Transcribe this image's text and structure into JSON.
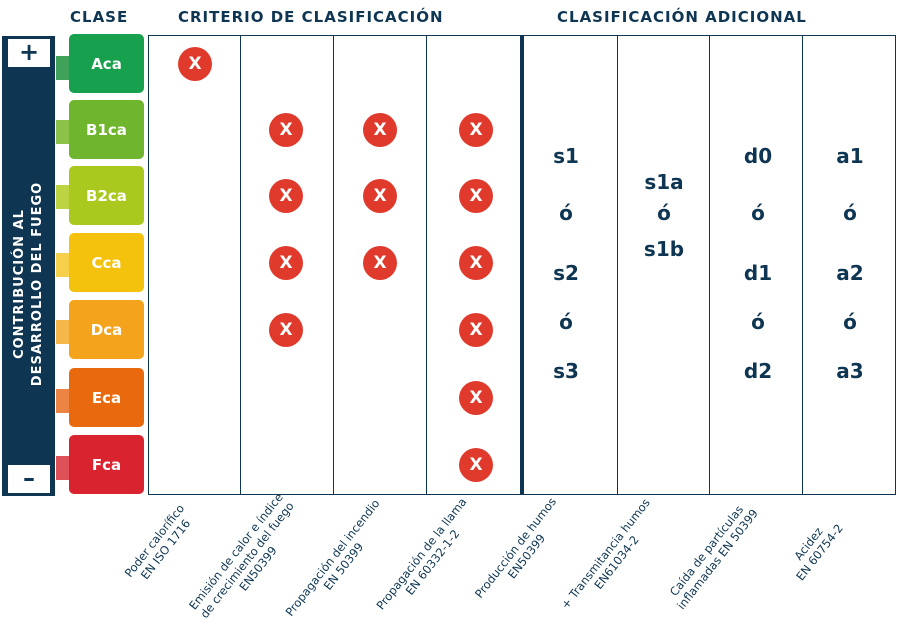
{
  "headers": {
    "clase": "CLASE",
    "criterio": "CRITERIO DE CLASIFICACIÓN",
    "adicional": "CLASIFICACIÓN ADICIONAL"
  },
  "sidebar": {
    "plus": "+",
    "minus": "–",
    "line1": "CONTRIBUCIÓN AL",
    "line2": "DESARROLLO DEL FUEGO"
  },
  "mark_symbol": "X",
  "classes": [
    {
      "label": "Aca",
      "color": "#17a04e",
      "tab_color": "#3fa15a",
      "marks": [
        true,
        false,
        false,
        false
      ]
    },
    {
      "label": "B1ca",
      "color": "#6fb52e",
      "tab_color": "#8cc24a",
      "marks": [
        false,
        true,
        true,
        true
      ]
    },
    {
      "label": "B2ca",
      "color": "#a9c91f",
      "tab_color": "#bcd342",
      "marks": [
        false,
        true,
        true,
        true
      ]
    },
    {
      "label": "Cca",
      "color": "#f4c20d",
      "tab_color": "#f6d04a",
      "marks": [
        false,
        true,
        true,
        true
      ]
    },
    {
      "label": "Dca",
      "color": "#f3a41c",
      "tab_color": "#f5b64a",
      "marks": [
        false,
        true,
        false,
        true
      ]
    },
    {
      "label": "Eca",
      "color": "#e9690f",
      "tab_color": "#ec8444",
      "marks": [
        false,
        false,
        false,
        true
      ]
    },
    {
      "label": "Fca",
      "color": "#d9232f",
      "tab_color": "#df5158",
      "marks": [
        false,
        false,
        false,
        true
      ]
    }
  ],
  "additional": {
    "smoke": [
      "s1",
      "ó",
      "s2",
      "ó",
      "s3"
    ],
    "transmittance": [
      "s1a",
      "ó",
      "s1b"
    ],
    "droplets": [
      "d0",
      "ó",
      "d1",
      "ó",
      "d2"
    ],
    "acidity": [
      "a1",
      "ó",
      "a2",
      "ó",
      "a3"
    ]
  },
  "columns": [
    {
      "line1": "Poder calorífico",
      "line2": "EN ISO 1716"
    },
    {
      "line1": "Emisión de calor e índice",
      "line2": "de crecimiento del fuego",
      "line3": "EN50399"
    },
    {
      "line1": "Propagación del incendio",
      "line2": "EN 50399"
    },
    {
      "line1": "Propagación de la llama",
      "line2": "EN 60332-1-2"
    },
    {
      "line1": "Producción de humos",
      "line2": "EN50399"
    },
    {
      "line1": "+ Transmitancia humos",
      "line2": "EN61034-2"
    },
    {
      "line1": "Caída de partículas",
      "line2": "inflamadas EN 50399"
    },
    {
      "line1": "Acidez",
      "line2": "EN 60754-2"
    }
  ]
}
